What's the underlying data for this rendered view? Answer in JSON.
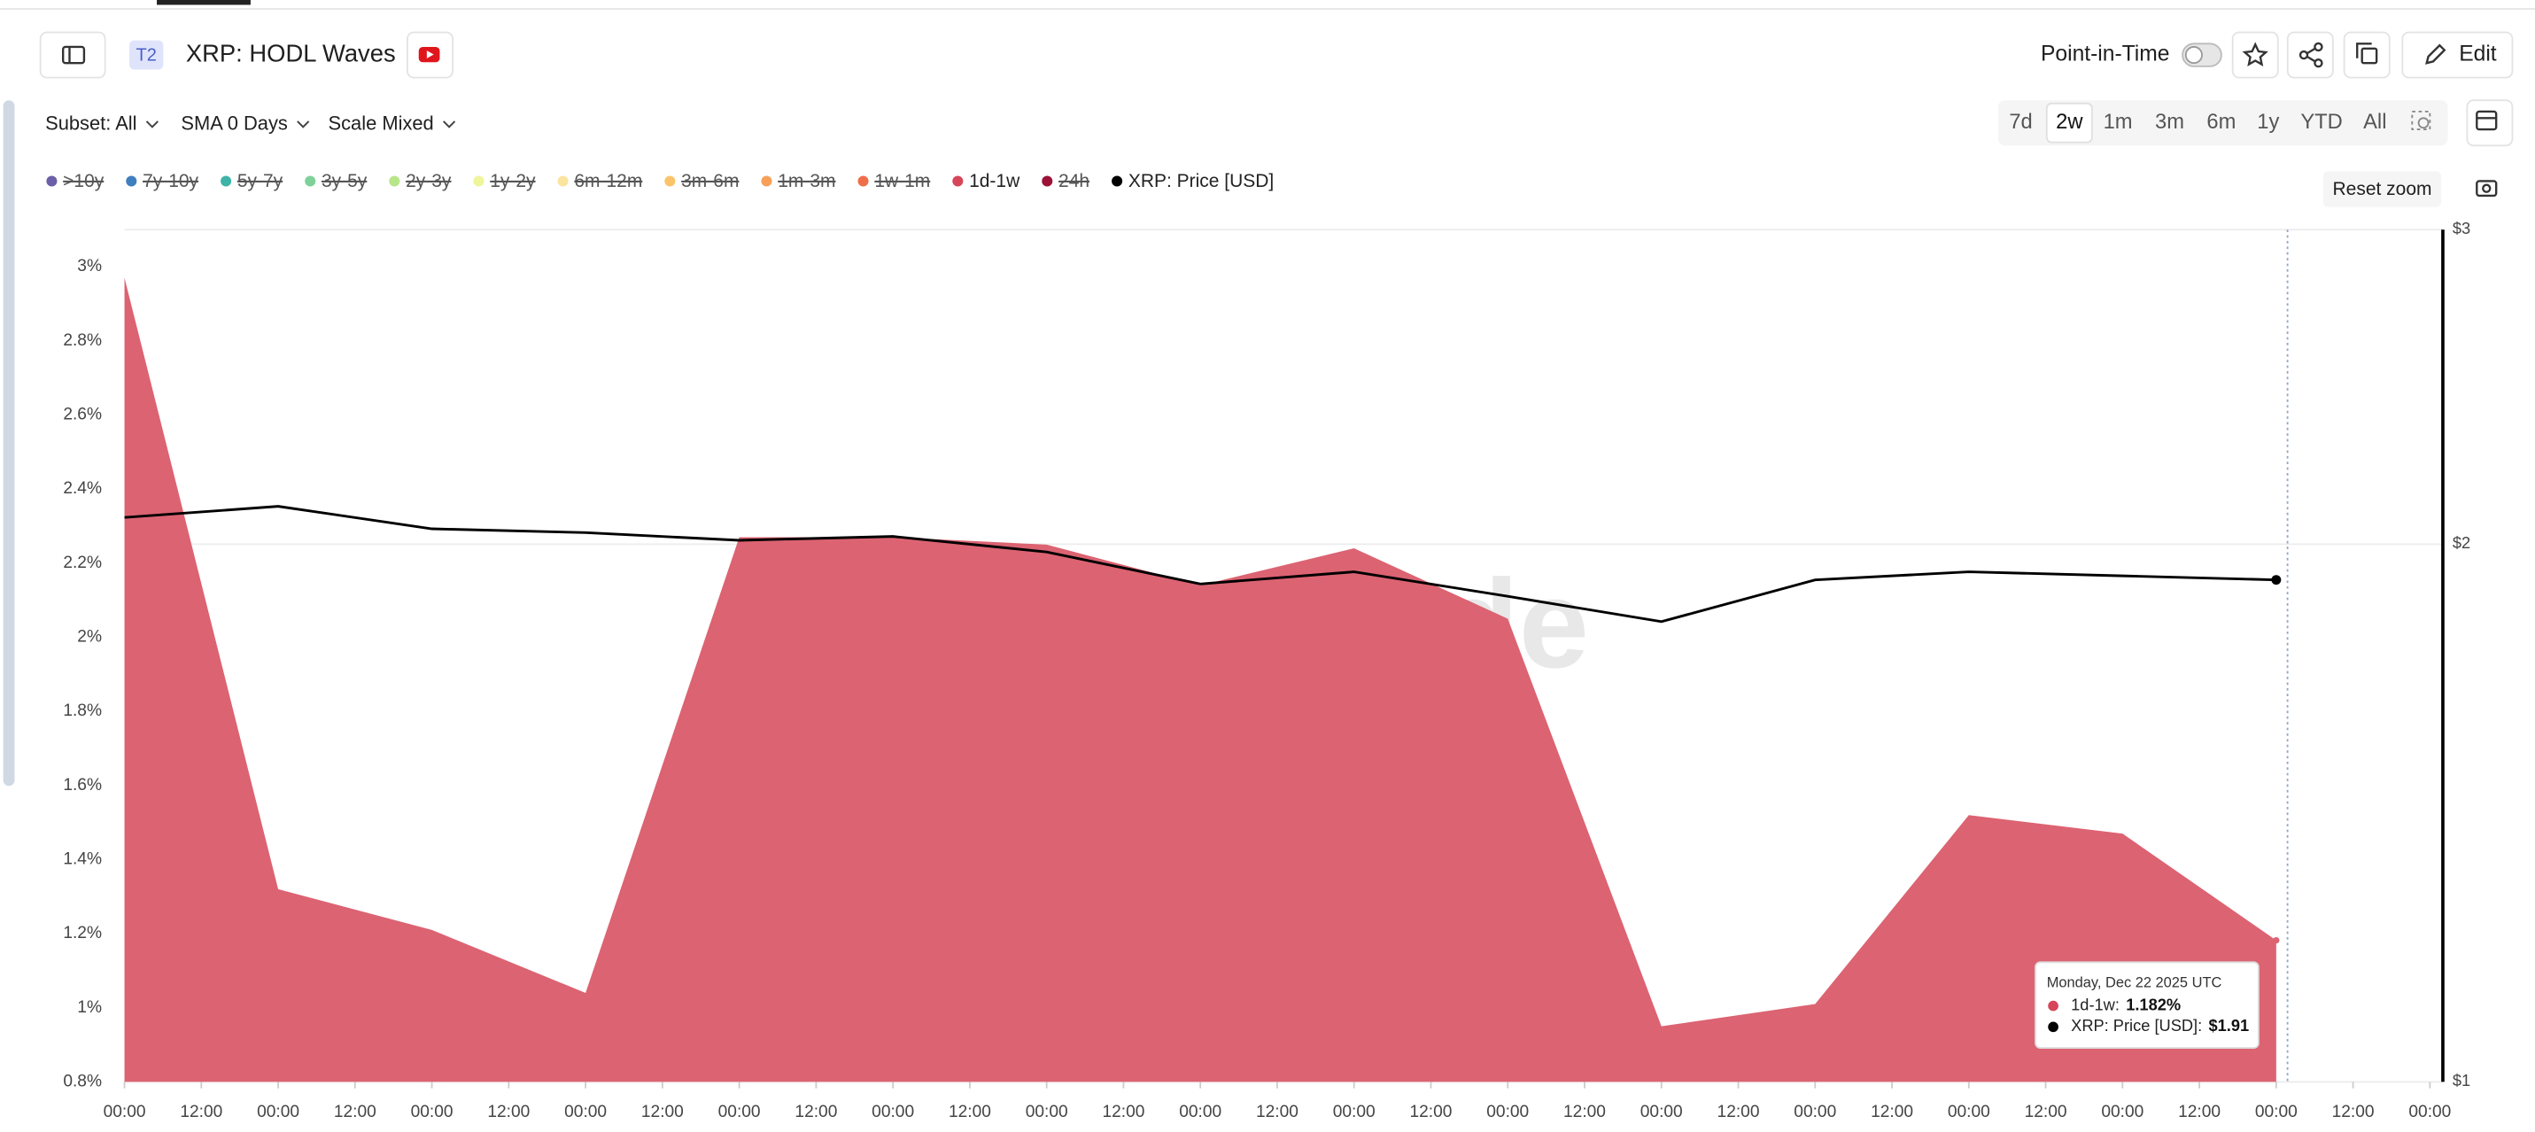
{
  "header": {
    "badge": "T2",
    "title": "XRP: HODL Waves",
    "point_in_time": "Point-in-Time",
    "edit": "Edit"
  },
  "toolbar": {
    "filters": [
      "Subset: All",
      "SMA 0 Days",
      "Scale Mixed"
    ],
    "ranges": [
      "7d",
      "2w",
      "1m",
      "3m",
      "6m",
      "1y",
      "YTD",
      "All"
    ],
    "active": 1,
    "reset_zoom": "Reset zoom"
  },
  "legend": [
    {
      "name": ">10y",
      "color": "#6b5fa8",
      "hidden": true
    },
    {
      "name": "7y-10y",
      "color": "#3f7fbf",
      "hidden": true
    },
    {
      "name": "5y-7y",
      "color": "#3fb3a8",
      "hidden": true
    },
    {
      "name": "3y-5y",
      "color": "#7fd19a",
      "hidden": true
    },
    {
      "name": "2y-3y",
      "color": "#b9e58a",
      "hidden": true
    },
    {
      "name": "1y-2y",
      "color": "#eef59a",
      "hidden": true
    },
    {
      "name": "6m-12m",
      "color": "#fbe4a0",
      "hidden": true
    },
    {
      "name": "3m-6m",
      "color": "#fbc46a",
      "hidden": true
    },
    {
      "name": "1m-3m",
      "color": "#f8a05a",
      "hidden": true
    },
    {
      "name": "1w-1m",
      "color": "#ef6e4a",
      "hidden": true
    },
    {
      "name": "1d-1w",
      "color": "#d6455a",
      "hidden": false
    },
    {
      "name": "24h",
      "color": "#9c1237",
      "hidden": true
    },
    {
      "name": "XRP: Price [USD]",
      "color": "#000000",
      "hidden": false
    }
  ],
  "chart_data": {
    "type": "area",
    "watermark": "glassnode",
    "x": [
      0,
      24,
      48,
      72,
      96,
      120,
      144,
      168,
      192,
      216,
      240,
      264,
      288,
      312,
      336
    ],
    "xlim": [
      0,
      360
    ],
    "xticks": [
      {
        "value": 0,
        "label": "00:00"
      },
      {
        "value": 12,
        "label": "12:00"
      },
      {
        "value": 24,
        "label": "00:00"
      },
      {
        "value": 36,
        "label": "12:00"
      },
      {
        "value": 48,
        "label": "00:00"
      },
      {
        "value": 60,
        "label": "12:00"
      },
      {
        "value": 72,
        "label": "00:00"
      },
      {
        "value": 84,
        "label": "12:00"
      },
      {
        "value": 96,
        "label": "00:00"
      },
      {
        "value": 108,
        "label": "12:00"
      },
      {
        "value": 120,
        "label": "00:00"
      },
      {
        "value": 132,
        "label": "12:00"
      },
      {
        "value": 144,
        "label": "00:00"
      },
      {
        "value": 156,
        "label": "12:00"
      },
      {
        "value": 168,
        "label": "00:00"
      },
      {
        "value": 180,
        "label": "12:00"
      },
      {
        "value": 192,
        "label": "00:00"
      },
      {
        "value": 204,
        "label": "12:00"
      },
      {
        "value": 216,
        "label": "00:00"
      },
      {
        "value": 228,
        "label": "12:00"
      },
      {
        "value": 240,
        "label": "00:00"
      },
      {
        "value": 252,
        "label": "12:00"
      },
      {
        "value": 264,
        "label": "00:00"
      },
      {
        "value": 276,
        "label": "12:00"
      },
      {
        "value": 288,
        "label": "00:00"
      },
      {
        "value": 300,
        "label": "12:00"
      },
      {
        "value": 312,
        "label": "00:00"
      },
      {
        "value": 324,
        "label": "12:00"
      },
      {
        "value": 336,
        "label": "00:00"
      },
      {
        "value": 348,
        "label": "12:00"
      },
      {
        "value": 360,
        "label": "00:00"
      }
    ],
    "ylim": [
      0.8,
      3.1
    ],
    "yticks": [
      {
        "value": 0.8,
        "label": "0.8%"
      },
      {
        "value": 1,
        "label": "1%"
      },
      {
        "value": 1.2,
        "label": "1.2%"
      },
      {
        "value": 1.4,
        "label": "1.4%"
      },
      {
        "value": 1.6,
        "label": "1.6%"
      },
      {
        "value": 1.8,
        "label": "1.8%"
      },
      {
        "value": 2,
        "label": "2%"
      },
      {
        "value": 2.2,
        "label": "2.2%"
      },
      {
        "value": 2.4,
        "label": "2.4%"
      },
      {
        "value": 2.6,
        "label": "2.6%"
      },
      {
        "value": 2.8,
        "label": "2.8%"
      },
      {
        "value": 3,
        "label": "3%"
      }
    ],
    "y2lim": [
      1,
      3
    ],
    "y2log": true,
    "y2ticks": [
      {
        "value": 1,
        "label": "$1"
      },
      {
        "value": 2,
        "label": "$2"
      },
      {
        "value": 3,
        "label": "$3"
      }
    ],
    "series": [
      {
        "name": "1d-1w",
        "type": "area",
        "color": "#dc6372",
        "values": [
          2.97,
          1.32,
          1.21,
          1.04,
          2.27,
          2.27,
          2.25,
          2.14,
          2.24,
          2.05,
          0.95,
          1.01,
          1.52,
          1.47,
          1.182
        ]
      },
      {
        "name": "XRP: Price [USD]",
        "type": "line",
        "color": "#000000",
        "axis": "y2",
        "values": [
          2.07,
          2.1,
          2.04,
          2.03,
          2.01,
          2.02,
          1.98,
          1.9,
          1.93,
          1.87,
          1.81,
          1.91,
          1.93,
          1.92,
          1.91
        ]
      }
    ]
  },
  "tooltip": {
    "date": "Monday, Dec 22 2025 UTC",
    "rows": [
      {
        "label": "1d-1w:",
        "value": "1.182%",
        "color": "#d6455a"
      },
      {
        "label": "XRP: Price [USD]:",
        "value": "$1.91",
        "color": "#000000"
      }
    ]
  }
}
